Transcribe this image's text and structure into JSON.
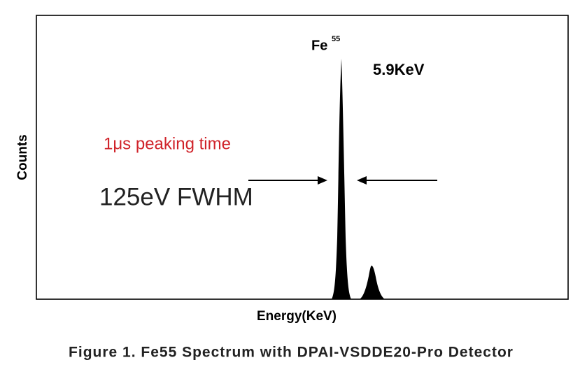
{
  "figure": {
    "peak_label": {
      "element": "Fe",
      "isotope": "55"
    },
    "energy_label": "5.9KeV",
    "annotation_time": "1μs peaking time",
    "annotation_fwhm": "125eV FWHM",
    "y_axis_label": "Counts",
    "x_axis_label": "Energy(KeV)",
    "caption": "Figure 1. Fe55 Spectrum with DPAI-VSDDE20-Pro Detector"
  }
}
